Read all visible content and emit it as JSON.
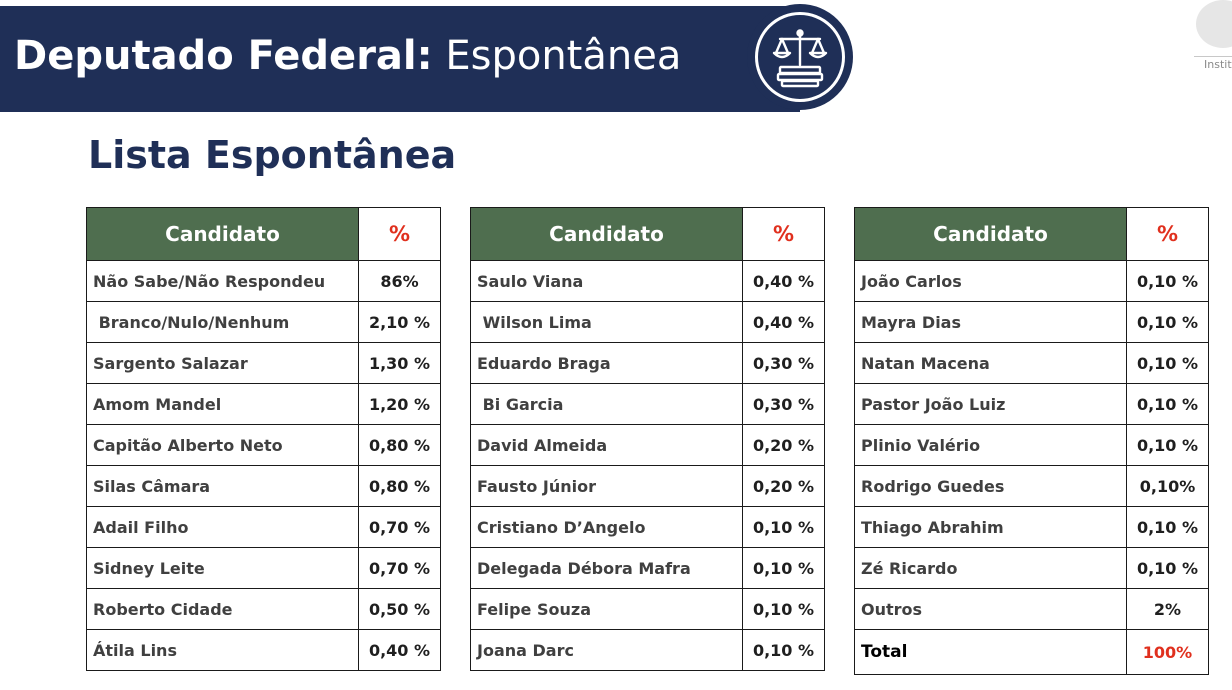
{
  "header": {
    "title_bold": "Deputado Federal:",
    "title_light": "Espontânea",
    "emblem": "scales-of-justice-icon"
  },
  "logo": {
    "text": "Instit"
  },
  "subtitle": "Lista Espontânea",
  "colors": {
    "header_bg": "#1f2f57",
    "table_header_bg": "#4f6e4f",
    "percent_red": "#e0301e"
  },
  "tables": [
    {
      "headers": {
        "name": "Candidato",
        "value": "%"
      },
      "rows": [
        {
          "name": "Não Sabe/Não Respondeu",
          "value": "86%"
        },
        {
          "name": " Branco/Nulo/Nenhum",
          "value": "2,10 %"
        },
        {
          "name": "Sargento Salazar",
          "value": "1,30 %"
        },
        {
          "name": "Amom Mandel",
          "value": "1,20 %"
        },
        {
          "name": "Capitão Alberto Neto",
          "value": "0,80 %"
        },
        {
          "name": "Silas Câmara",
          "value": "0,80 %"
        },
        {
          "name": "Adail Filho",
          "value": "0,70 %"
        },
        {
          "name": "Sidney Leite",
          "value": "0,70 %"
        },
        {
          "name": "Roberto Cidade",
          "value": "0,50 %"
        },
        {
          "name": "Átila Lins",
          "value": "0,40 %"
        }
      ]
    },
    {
      "headers": {
        "name": "Candidato",
        "value": "%"
      },
      "rows": [
        {
          "name": "Saulo Viana",
          "value": "0,40 %"
        },
        {
          "name": " Wilson Lima",
          "value": "0,40 %"
        },
        {
          "name": "Eduardo Braga",
          "value": "0,30 %"
        },
        {
          "name": " Bi Garcia",
          "value": "0,30 %"
        },
        {
          "name": "David Almeida",
          "value": "0,20 %"
        },
        {
          "name": "Fausto Júnior",
          "value": "0,20 %"
        },
        {
          "name": "Cristiano D’Angelo",
          "value": "0,10 %"
        },
        {
          "name": "Delegada Débora Mafra",
          "value": "0,10 %"
        },
        {
          "name": "Felipe Souza",
          "value": "0,10 %"
        },
        {
          "name": "Joana Darc",
          "value": "0,10 %"
        }
      ]
    },
    {
      "headers": {
        "name": "Candidato",
        "value": "%"
      },
      "rows": [
        {
          "name": "João Carlos",
          "value": "0,10 %"
        },
        {
          "name": "Mayra Dias",
          "value": "0,10 %"
        },
        {
          "name": "Natan Macena",
          "value": "0,10 %"
        },
        {
          "name": "Pastor João Luiz",
          "value": "0,10 %"
        },
        {
          "name": "Plinio Valério",
          "value": "0,10 %"
        },
        {
          "name": "Rodrigo Guedes",
          "value": "0,10%"
        },
        {
          "name": "Thiago Abrahim",
          "value": "0,10 %"
        },
        {
          "name": "Zé Ricardo",
          "value": "0,10 %"
        },
        {
          "name": "Outros",
          "value": "2%"
        }
      ],
      "total": {
        "name": "Total",
        "value": "100%"
      }
    }
  ]
}
